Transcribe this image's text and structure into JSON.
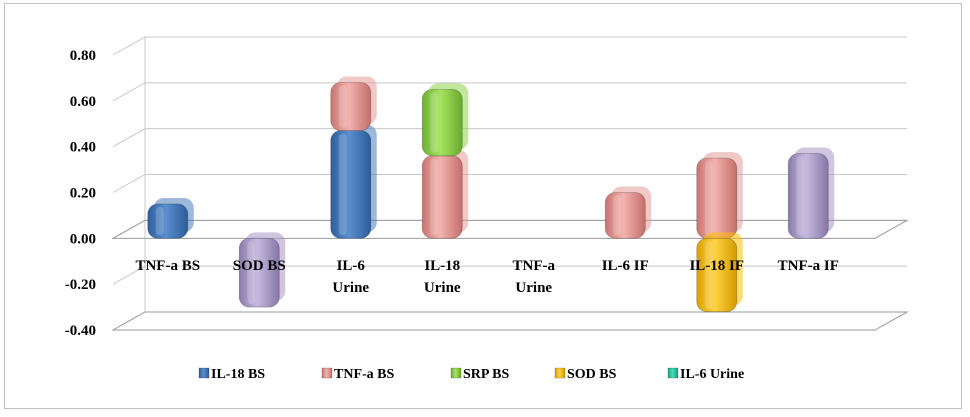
{
  "chart_data": {
    "type": "bar",
    "stacked": true,
    "style": "3d-rounded",
    "categories": [
      {
        "lines": [
          "TNF-a BS"
        ]
      },
      {
        "lines": [
          "SOD BS"
        ]
      },
      {
        "lines": [
          "IL-6",
          "Urine"
        ]
      },
      {
        "lines": [
          "IL-18",
          "Urine"
        ]
      },
      {
        "lines": [
          "TNF-a",
          "Urine"
        ]
      },
      {
        "lines": [
          "IL-6 IF"
        ]
      },
      {
        "lines": [
          "IL-18 IF"
        ]
      },
      {
        "lines": [
          "TNF-a IF"
        ]
      }
    ],
    "series": [
      {
        "name": "IL-18 BS",
        "color": "#4a7ebb",
        "values": [
          0.15,
          0,
          0.47,
          0,
          0,
          0,
          0,
          0
        ]
      },
      {
        "name": "TNF-a BS",
        "color": "#e49a96",
        "values": [
          0,
          0,
          0.21,
          0.36,
          0,
          0.2,
          0.35,
          0
        ]
      },
      {
        "name": "SRP BS",
        "color": "#8ed24a",
        "values": [
          0,
          0,
          0,
          0.29,
          0,
          0,
          0,
          0
        ]
      },
      {
        "name": "SOD BS",
        "color": "#ffc000",
        "values": [
          0,
          -0.3,
          0,
          0,
          0,
          0,
          -0.32,
          0.37
        ]
      },
      {
        "name": "IL-6 Urine",
        "color": "#2bc49f",
        "values": [
          0,
          0,
          0,
          0,
          0,
          0,
          0,
          0
        ]
      }
    ],
    "bar_color_overrides": [
      {
        "series": 3,
        "category": 1,
        "color": "#a898c6"
      },
      {
        "series": 3,
        "category": 7,
        "color": "#a898c6"
      }
    ],
    "y_ticks": [
      "0.80",
      "0.60",
      "0.40",
      "0.20",
      "0.00",
      "-0.20",
      "-0.40"
    ],
    "ylim": [
      -0.4,
      0.8
    ],
    "grid": true,
    "legend_position": "bottom"
  }
}
